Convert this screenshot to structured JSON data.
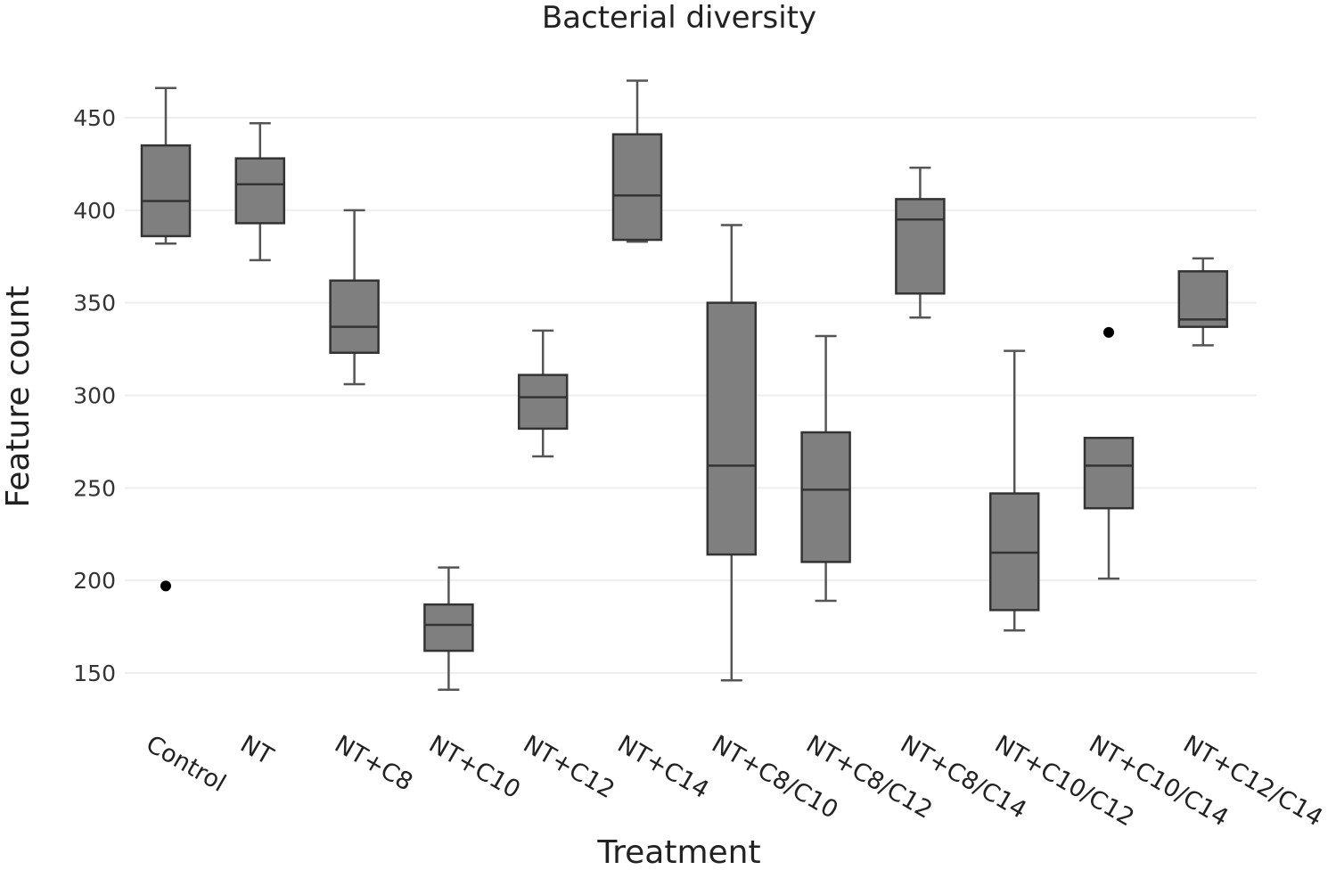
{
  "chart_data": {
    "type": "box",
    "title": "Bacterial diversity",
    "xlabel": "Treatment",
    "ylabel": "Feature count",
    "ylim": [
      122,
      480
    ],
    "yticks": [
      150,
      200,
      250,
      300,
      350,
      400,
      450
    ],
    "ytick_labels": [
      "150",
      "200",
      "250",
      "300",
      "350",
      "400",
      "450"
    ],
    "grid": true,
    "box_color": "#7f7f7f",
    "outline_color": "#333333",
    "series": [
      {
        "name": "Control",
        "min": 382,
        "q1": 386,
        "median": 405,
        "q3": 435,
        "max": 466,
        "outliers": [
          197
        ]
      },
      {
        "name": "NT",
        "min": 373,
        "q1": 393,
        "median": 414,
        "q3": 428,
        "max": 447,
        "outliers": []
      },
      {
        "name": "NT+C8",
        "min": 306,
        "q1": 323,
        "median": 337,
        "q3": 362,
        "max": 400,
        "outliers": []
      },
      {
        "name": "NT+C10",
        "min": 141,
        "q1": 162,
        "median": 176,
        "q3": 187,
        "max": 207,
        "outliers": []
      },
      {
        "name": "NT+C12",
        "min": 267,
        "q1": 282,
        "median": 299,
        "q3": 311,
        "max": 335,
        "outliers": []
      },
      {
        "name": "NT+C14",
        "min": 383,
        "q1": 384,
        "median": 408,
        "q3": 441,
        "max": 470,
        "outliers": []
      },
      {
        "name": "NT+C8/C10",
        "min": 146,
        "q1": 214,
        "median": 262,
        "q3": 350,
        "max": 392,
        "outliers": []
      },
      {
        "name": "NT+C8/C12",
        "min": 189,
        "q1": 210,
        "median": 249,
        "q3": 280,
        "max": 332,
        "outliers": []
      },
      {
        "name": "NT+C8/C14",
        "min": 342,
        "q1": 355,
        "median": 395,
        "q3": 406,
        "max": 423,
        "outliers": []
      },
      {
        "name": "NT+C10/C12",
        "min": 173,
        "q1": 184,
        "median": 215,
        "q3": 247,
        "max": 324,
        "outliers": []
      },
      {
        "name": "NT+C10/C14",
        "min": 201,
        "q1": 239,
        "median": 262,
        "q3": 277,
        "max": 277,
        "outliers": [
          334
        ]
      },
      {
        "name": "NT+C12/C14",
        "min": 327,
        "q1": 337,
        "median": 341,
        "q3": 367,
        "max": 374,
        "outliers": []
      }
    ]
  }
}
